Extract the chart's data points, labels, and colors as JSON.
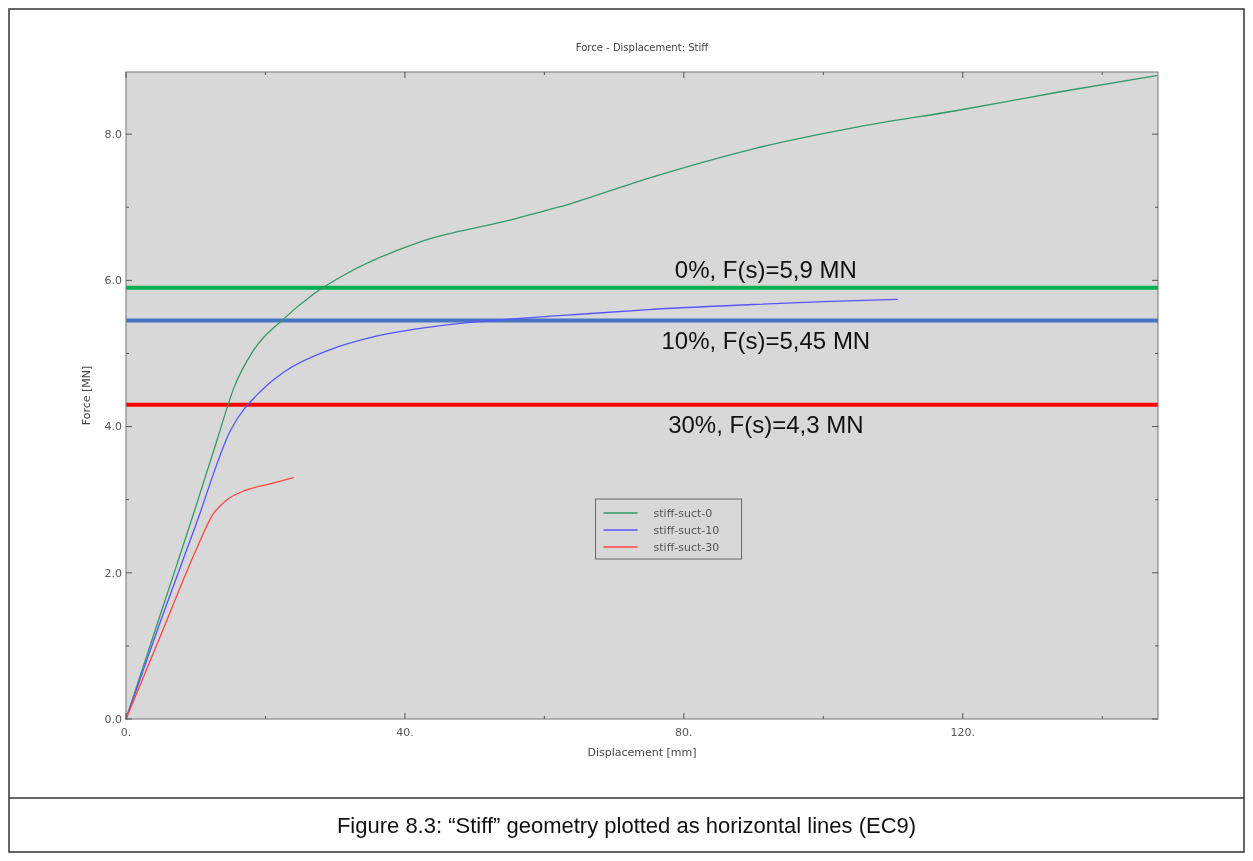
{
  "chart_data": {
    "type": "line",
    "title": "Force - Displacement: Stiff",
    "xlabel": "Displacement [mm]",
    "ylabel": "Force [MN]",
    "xlim": [
      0,
      148
    ],
    "ylim": [
      0,
      8.85
    ],
    "xticks": [
      {
        "value": 0,
        "label": "0."
      },
      {
        "value": 20,
        "label": null
      },
      {
        "value": 40,
        "label": "40."
      },
      {
        "value": 60,
        "label": null
      },
      {
        "value": 80,
        "label": "80."
      },
      {
        "value": 100,
        "label": null
      },
      {
        "value": 120,
        "label": "120."
      },
      {
        "value": 140,
        "label": null
      }
    ],
    "yticks": [
      {
        "value": 0,
        "label": "0.0"
      },
      {
        "value": 1,
        "label": null
      },
      {
        "value": 2,
        "label": "2.0"
      },
      {
        "value": 3,
        "label": null
      },
      {
        "value": 4,
        "label": "4.0"
      },
      {
        "value": 5,
        "label": null
      },
      {
        "value": 6,
        "label": "6.0"
      },
      {
        "value": 7,
        "label": null
      },
      {
        "value": 8,
        "label": "8.0"
      }
    ],
    "grid": false,
    "legend": "center",
    "series": [
      {
        "name": "stiff-suct-0",
        "color": "#339966",
        "x": [
          0,
          5,
          10,
          13,
          15.6,
          18,
          22.7,
          27,
          31.8,
          42,
          54.9,
          62,
          75,
          90,
          105,
          119,
          134,
          147.8
        ],
        "values": [
          0,
          1.45,
          2.9,
          3.8,
          4.56,
          5.0,
          5.48,
          5.82,
          6.1,
          6.52,
          6.82,
          7.0,
          7.4,
          7.8,
          8.1,
          8.32,
          8.58,
          8.8
        ]
      },
      {
        "name": "stiff-suct-10",
        "color": "#5555ff",
        "x": [
          0,
          5,
          10,
          15,
          19.5,
          22.7,
          29.2,
          35.6,
          45.2,
          55,
          62.7,
          75,
          90,
          100,
          110.6
        ],
        "values": [
          0,
          1.35,
          2.65,
          3.95,
          4.5,
          4.75,
          5.05,
          5.23,
          5.38,
          5.47,
          5.52,
          5.6,
          5.67,
          5.71,
          5.74
        ]
      },
      {
        "name": "stiff-suct-30",
        "color": "#ff4444",
        "x": [
          0,
          5,
          10,
          12.4,
          14.5,
          16.9,
          20.8,
          24
        ],
        "values": [
          0,
          1.15,
          2.3,
          2.79,
          3.0,
          3.12,
          3.22,
          3.3
        ]
      }
    ],
    "ref_lines": [
      {
        "axis": "y",
        "value": 5.9,
        "label": "0%, F(s)=5,9 MN",
        "color": "#00b050"
      },
      {
        "axis": "y",
        "value": 5.45,
        "label": "10%, F(s)=5,45 MN",
        "color": "#4472c4"
      },
      {
        "axis": "y",
        "value": 4.3,
        "label": "30%, F(s)=4,3 MN",
        "color": "#ff0000"
      }
    ],
    "annotations": [
      "Figure 8.3: “Stiff” geometry plotted as horizontal lines (EC9)"
    ]
  }
}
